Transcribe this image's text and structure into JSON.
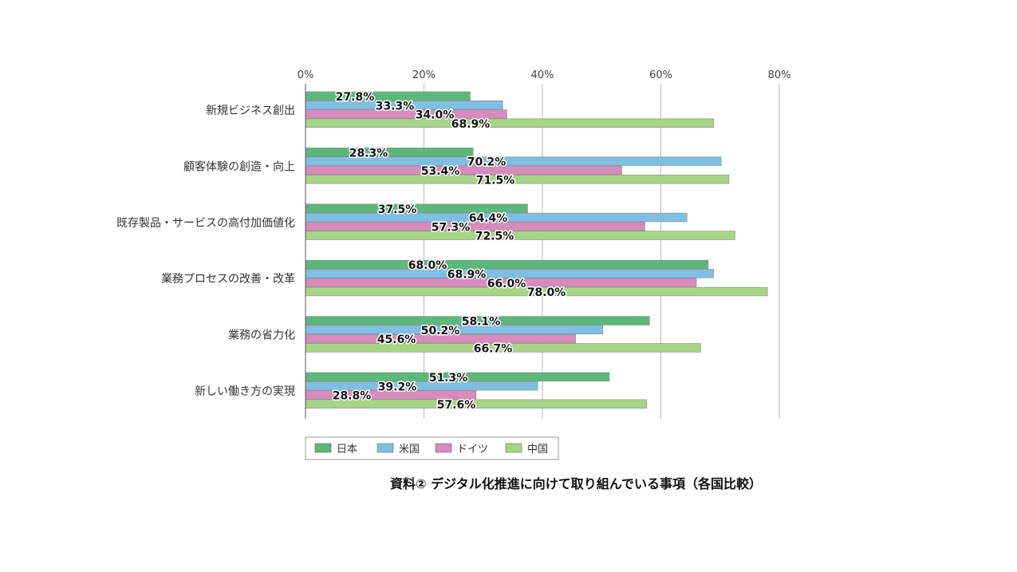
{
  "chart_data": {
    "type": "bar",
    "orientation": "horizontal",
    "title": "資料② デジタル化推進に向けて取り組んでいる事項（各国比較）",
    "xlim": [
      0,
      80
    ],
    "xticks": [
      "0%",
      "20%",
      "40%",
      "60%",
      "80%"
    ],
    "xtick_values": [
      0,
      20,
      40,
      60,
      80
    ],
    "grid": true,
    "legend_position": "bottom",
    "categories": [
      "新規ビジネス創出",
      "顧客体験の創造・向上",
      "既存製品・サービスの高付加価値化",
      "業務プロセスの改善・改革",
      "業務の省力化",
      "新しい働き方の実現"
    ],
    "series": [
      {
        "name": "日本",
        "color": "#5cb87a",
        "values": [
          27.8,
          28.3,
          37.5,
          68.0,
          58.1,
          51.3
        ],
        "labels": [
          "27.8%",
          "28.3%",
          "37.5%",
          "68.0%",
          "58.1%",
          "51.3%"
        ]
      },
      {
        "name": "米国",
        "color": "#7fbfe3",
        "values": [
          33.3,
          70.2,
          64.4,
          68.9,
          50.2,
          39.2
        ],
        "labels": [
          "33.3%",
          "70.2%",
          "64.4%",
          "68.9%",
          "50.2%",
          "39.2%"
        ]
      },
      {
        "name": "ドイツ",
        "color": "#d88bbd",
        "values": [
          34.0,
          53.4,
          57.3,
          66.0,
          45.6,
          28.8
        ],
        "labels": [
          "34.0%",
          "53.4%",
          "57.3%",
          "66.0%",
          "45.6%",
          "28.8%"
        ]
      },
      {
        "name": "中国",
        "color": "#a6d585",
        "values": [
          68.9,
          71.5,
          72.5,
          78.0,
          66.7,
          57.6
        ],
        "labels": [
          "68.9%",
          "71.5%",
          "72.5%",
          "78.0%",
          "66.7%",
          "57.6%"
        ]
      }
    ]
  }
}
